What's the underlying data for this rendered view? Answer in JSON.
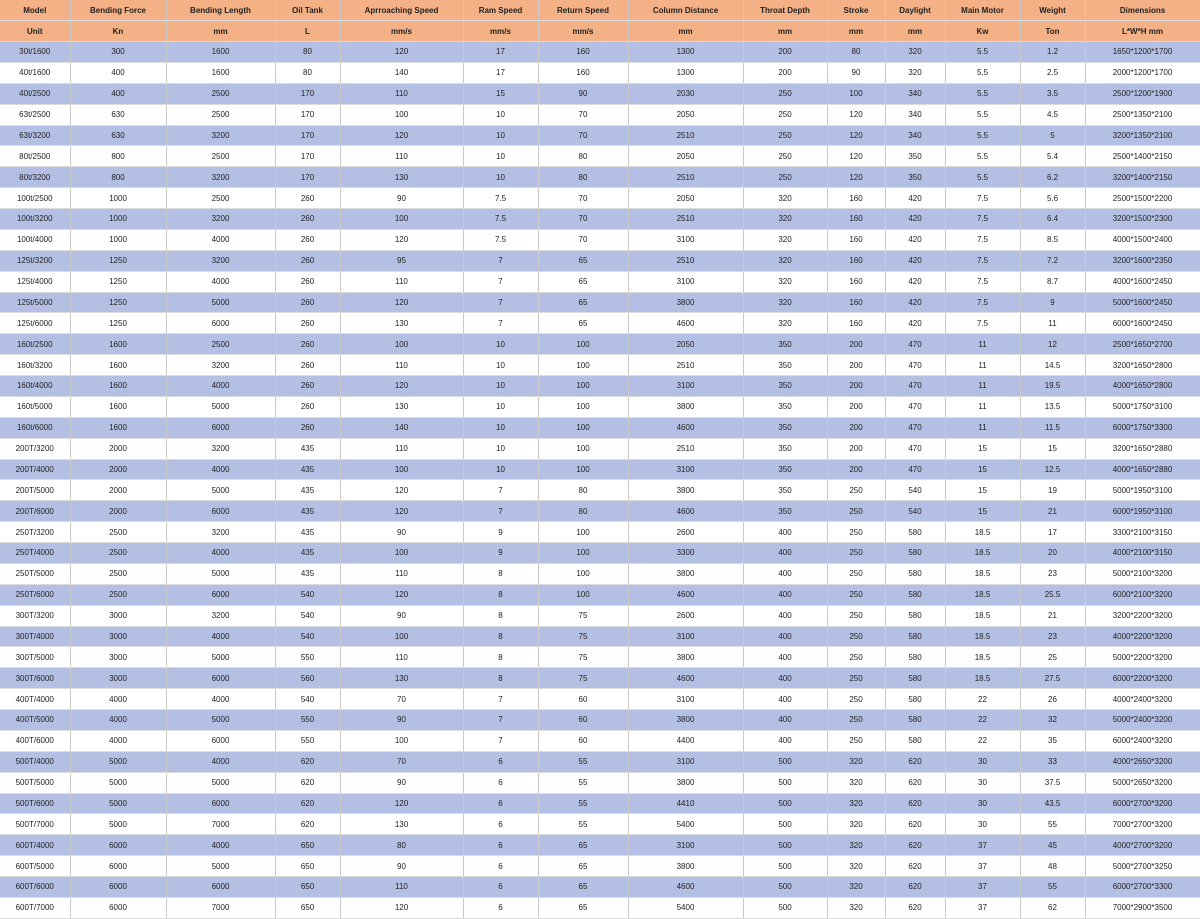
{
  "table": {
    "header": [
      "Model",
      "Bending  Force",
      "Bending Length",
      "Oil Tank",
      "Aprroaching Speed",
      "Ram Speed",
      "Return Speed",
      "Column Distance",
      "Throat Depth",
      "Stroke",
      "Daylight",
      "Main Motor",
      "Weight",
      "Dimensions"
    ],
    "units": [
      "Unit",
      "Kn",
      "mm",
      "L",
      "mm/s",
      "mm/s",
      "mm/s",
      "mm",
      "mm",
      "mm",
      "mm",
      "Kw",
      "Ton",
      "L*W*H mm"
    ],
    "rows": [
      [
        "30t/1600",
        "300",
        "1600",
        "80",
        "120",
        "17",
        "160",
        "1300",
        "200",
        "80",
        "320",
        "5.5",
        "1.2",
        "1650*1200*1700"
      ],
      [
        "40t/1600",
        "400",
        "1600",
        "80",
        "140",
        "17",
        "160",
        "1300",
        "200",
        "90",
        "320",
        "5.5",
        "2.5",
        "2000*1200*1700"
      ],
      [
        "40t/2500",
        "400",
        "2500",
        "170",
        "110",
        "15",
        "90",
        "2030",
        "250",
        "100",
        "340",
        "5.5",
        "3.5",
        "2500*1200*1900"
      ],
      [
        "63t/2500",
        "630",
        "2500",
        "170",
        "100",
        "10",
        "70",
        "2050",
        "250",
        "120",
        "340",
        "5.5",
        "4.5",
        "2500*1350*2100"
      ],
      [
        "63t/3200",
        "630",
        "3200",
        "170",
        "120",
        "10",
        "70",
        "2510",
        "250",
        "120",
        "340",
        "5.5",
        "5",
        "3200*1350*2100"
      ],
      [
        "80t/2500",
        "800",
        "2500",
        "170",
        "110",
        "10",
        "80",
        "2050",
        "250",
        "120",
        "350",
        "5.5",
        "5.4",
        "2500*1400*2150"
      ],
      [
        "80t/3200",
        "800",
        "3200",
        "170",
        "130",
        "10",
        "80",
        "2510",
        "250",
        "120",
        "350",
        "5.5",
        "6.2",
        "3200*1400*2150"
      ],
      [
        "100t/2500",
        "1000",
        "2500",
        "260",
        "90",
        "7.5",
        "70",
        "2050",
        "320",
        "160",
        "420",
        "7.5",
        "5.6",
        "2500*1500*2200"
      ],
      [
        "100t/3200",
        "1000",
        "3200",
        "260",
        "100",
        "7.5",
        "70",
        "2510",
        "320",
        "160",
        "420",
        "7.5",
        "6.4",
        "3200*1500*2300"
      ],
      [
        "100t/4000",
        "1000",
        "4000",
        "260",
        "120",
        "7.5",
        "70",
        "3100",
        "320",
        "160",
        "420",
        "7.5",
        "8.5",
        "4000*1500*2400"
      ],
      [
        "125t/3200",
        "1250",
        "3200",
        "260",
        "95",
        "7",
        "65",
        "2510",
        "320",
        "160",
        "420",
        "7.5",
        "7.2",
        "3200*1600*2350"
      ],
      [
        "125t/4000",
        "1250",
        "4000",
        "260",
        "110",
        "7",
        "65",
        "3100",
        "320",
        "160",
        "420",
        "7.5",
        "8.7",
        "4000*1600*2450"
      ],
      [
        "125t/5000",
        "1250",
        "5000",
        "260",
        "120",
        "7",
        "65",
        "3800",
        "320",
        "160",
        "420",
        "7.5",
        "9",
        "5000*1600*2450"
      ],
      [
        "125t/6000",
        "1250",
        "6000",
        "260",
        "130",
        "7",
        "65",
        "4600",
        "320",
        "160",
        "420",
        "7.5",
        "11",
        "6000*1600*2450"
      ],
      [
        "160t/2500",
        "1600",
        "2500",
        "260",
        "100",
        "10",
        "100",
        "2050",
        "350",
        "200",
        "470",
        "11",
        "12",
        "2500*1650*2700"
      ],
      [
        "160t/3200",
        "1600",
        "3200",
        "260",
        "110",
        "10",
        "100",
        "2510",
        "350",
        "200",
        "470",
        "11",
        "14.5",
        "3200*1650*2800"
      ],
      [
        "160t/4000",
        "1600",
        "4000",
        "260",
        "120",
        "10",
        "100",
        "3100",
        "350",
        "200",
        "470",
        "11",
        "19.5",
        "4000*1650*2800"
      ],
      [
        "160t/5000",
        "1600",
        "5000",
        "260",
        "130",
        "10",
        "100",
        "3800",
        "350",
        "200",
        "470",
        "11",
        "13.5",
        "5000*1750*3100"
      ],
      [
        "160t/6000",
        "1600",
        "6000",
        "260",
        "140",
        "10",
        "100",
        "4600",
        "350",
        "200",
        "470",
        "11",
        "11.5",
        "6000*1750*3300"
      ],
      [
        "200T/3200",
        "2000",
        "3200",
        "435",
        "110",
        "10",
        "100",
        "2510",
        "350",
        "200",
        "470",
        "15",
        "15",
        "3200*1650*2880"
      ],
      [
        "200T/4000",
        "2000",
        "4000",
        "435",
        "100",
        "10",
        "100",
        "3100",
        "350",
        "200",
        "470",
        "15",
        "12.5",
        "4000*1650*2880"
      ],
      [
        "200T/5000",
        "2000",
        "5000",
        "435",
        "120",
        "7",
        "80",
        "3800",
        "350",
        "250",
        "540",
        "15",
        "19",
        "5000*1950*3100"
      ],
      [
        "200T/6000",
        "2000",
        "6000",
        "435",
        "120",
        "7",
        "80",
        "4600",
        "350",
        "250",
        "540",
        "15",
        "21",
        "6000*1950*3100"
      ],
      [
        "250T/3200",
        "2500",
        "3200",
        "435",
        "90",
        "9",
        "100",
        "2600",
        "400",
        "250",
        "580",
        "18.5",
        "17",
        "3300*2100*3150"
      ],
      [
        "250T/4000",
        "2500",
        "4000",
        "435",
        "100",
        "9",
        "100",
        "3300",
        "400",
        "250",
        "580",
        "18.5",
        "20",
        "4000*2100*3150"
      ],
      [
        "250T/5000",
        "2500",
        "5000",
        "435",
        "110",
        "8",
        "100",
        "3800",
        "400",
        "250",
        "580",
        "18.5",
        "23",
        "5000*2100*3200"
      ],
      [
        "250T/6000",
        "2500",
        "6000",
        "540",
        "120",
        "8",
        "100",
        "4600",
        "400",
        "250",
        "580",
        "18.5",
        "25.5",
        "6000*2100*3200"
      ],
      [
        "300T/3200",
        "3000",
        "3200",
        "540",
        "90",
        "8",
        "75",
        "2600",
        "400",
        "250",
        "580",
        "18.5",
        "21",
        "3200*2200*3200"
      ],
      [
        "300T/4000",
        "3000",
        "4000",
        "540",
        "100",
        "8",
        "75",
        "3100",
        "400",
        "250",
        "580",
        "18.5",
        "23",
        "4000*2200*3200"
      ],
      [
        "300T/5000",
        "3000",
        "5000",
        "550",
        "110",
        "8",
        "75",
        "3800",
        "400",
        "250",
        "580",
        "18.5",
        "25",
        "5000*2200*3200"
      ],
      [
        "300T/6000",
        "3000",
        "6000",
        "560",
        "130",
        "8",
        "75",
        "4600",
        "400",
        "250",
        "580",
        "18.5",
        "27.5",
        "6000*2200*3200"
      ],
      [
        "400T/4000",
        "4000",
        "4000",
        "540",
        "70",
        "7",
        "60",
        "3100",
        "400",
        "250",
        "580",
        "22",
        "26",
        "4000*2400*3200"
      ],
      [
        "400T/5000",
        "4000",
        "5000",
        "550",
        "90",
        "7",
        "60",
        "3800",
        "400",
        "250",
        "580",
        "22",
        "32",
        "5000*2400*3200"
      ],
      [
        "400T/6000",
        "4000",
        "6000",
        "550",
        "100",
        "7",
        "60",
        "4400",
        "400",
        "250",
        "580",
        "22",
        "35",
        "6000*2400*3200"
      ],
      [
        "500T/4000",
        "5000",
        "4000",
        "620",
        "70",
        "6",
        "55",
        "3100",
        "500",
        "320",
        "620",
        "30",
        "33",
        "4000*2650*3200"
      ],
      [
        "500T/5000",
        "5000",
        "5000",
        "620",
        "90",
        "6",
        "55",
        "3800",
        "500",
        "320",
        "620",
        "30",
        "37.5",
        "5000*2650*3200"
      ],
      [
        "500T/6000",
        "5000",
        "6000",
        "620",
        "120",
        "6",
        "55",
        "4410",
        "500",
        "320",
        "620",
        "30",
        "43.5",
        "6000*2700*3200"
      ],
      [
        "500T/7000",
        "5000",
        "7000",
        "620",
        "130",
        "6",
        "55",
        "5400",
        "500",
        "320",
        "620",
        "30",
        "55",
        "7000*2700*3200"
      ],
      [
        "600T/4000",
        "6000",
        "4000",
        "650",
        "80",
        "6",
        "65",
        "3100",
        "500",
        "320",
        "620",
        "37",
        "45",
        "4000*2700*3200"
      ],
      [
        "600T/5000",
        "6000",
        "5000",
        "650",
        "90",
        "6",
        "65",
        "3800",
        "500",
        "320",
        "620",
        "37",
        "48",
        "5000*2700*3250"
      ],
      [
        "600T/6000",
        "6000",
        "6000",
        "650",
        "110",
        "6",
        "65",
        "4600",
        "500",
        "320",
        "620",
        "37",
        "55",
        "6000*2700*3300"
      ],
      [
        "600T/7000",
        "6000",
        "7000",
        "650",
        "120",
        "6",
        "65",
        "5400",
        "500",
        "320",
        "620",
        "37",
        "62",
        "7000*2900*3500"
      ]
    ]
  }
}
